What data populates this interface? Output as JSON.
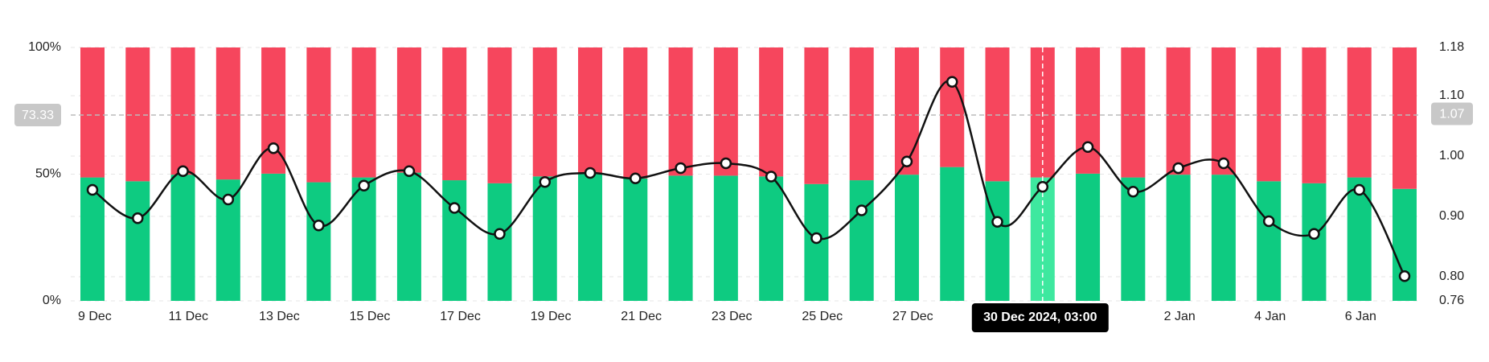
{
  "chart_data": {
    "type": "stacked-bar-line",
    "categories": [
      "9 Dec",
      null,
      "11 Dec",
      null,
      "13 Dec",
      null,
      "15 Dec",
      null,
      "17 Dec",
      null,
      "19 Dec",
      null,
      "21 Dec",
      null,
      "23 Dec",
      null,
      "25 Dec",
      null,
      "27 Dec",
      null,
      null,
      null,
      null,
      null,
      "2 Jan",
      null,
      "4 Jan",
      null,
      "6 Jan",
      null
    ],
    "series": [
      {
        "color": "#0ecb81",
        "values": [
          48.7,
          47.2,
          49.8,
          47.9,
          50.2,
          46.8,
          48.7,
          50.6,
          47.6,
          46.4,
          49.1,
          50.2,
          48.3,
          49.4,
          49.4,
          49.1,
          46.1,
          47.6,
          49.8,
          52.8,
          47.2,
          48.7,
          50.2,
          48.7,
          49.8,
          49.8,
          47.2,
          46.4,
          48.7,
          44.2
        ]
      },
      {
        "color": "#f6465d",
        "values": [
          51.3,
          52.8,
          50.2,
          52.1,
          49.8,
          53.2,
          51.3,
          49.4,
          52.4,
          53.6,
          50.9,
          49.8,
          51.7,
          50.6,
          50.6,
          50.9,
          53.9,
          52.4,
          50.2,
          47.2,
          52.8,
          51.3,
          49.8,
          51.3,
          50.2,
          50.2,
          52.8,
          53.6,
          51.3,
          55.8
        ]
      },
      {
        "color": "#111111",
        "axis": "y2",
        "values": [
          0.944,
          0.897,
          0.975,
          0.928,
          1.013,
          0.885,
          0.951,
          0.975,
          0.914,
          0.871,
          0.957,
          0.972,
          0.963,
          0.98,
          0.988,
          0.966,
          0.864,
          0.91,
          0.991,
          1.123,
          0.891,
          0.949,
          1.015,
          0.941,
          0.98,
          0.988,
          0.892,
          0.871,
          0.944,
          0.801
        ]
      }
    ],
    "ylim": [
      0,
      100
    ],
    "yticks": [
      {
        "value": 0,
        "label": "0%"
      },
      {
        "value": 50,
        "label": "50%"
      },
      {
        "value": 100,
        "label": "100%"
      }
    ],
    "y2lim": [
      0.76,
      1.18
    ],
    "y2ticks": [
      0.76,
      {
        "value": 0.8,
        "label": "0.80"
      },
      {
        "value": 0.9,
        "label": "0.90"
      },
      {
        "value": 1.0,
        "label": "1.00"
      },
      {
        "value": 1.1,
        "label": "1.10"
      },
      1.18
    ],
    "grid": true,
    "crosshair": {
      "index": 21,
      "y": 73.33,
      "y2": 1.07,
      "tooltip": "30 Dec 2024, 03:00",
      "bar_color": "#3ee89f"
    }
  }
}
